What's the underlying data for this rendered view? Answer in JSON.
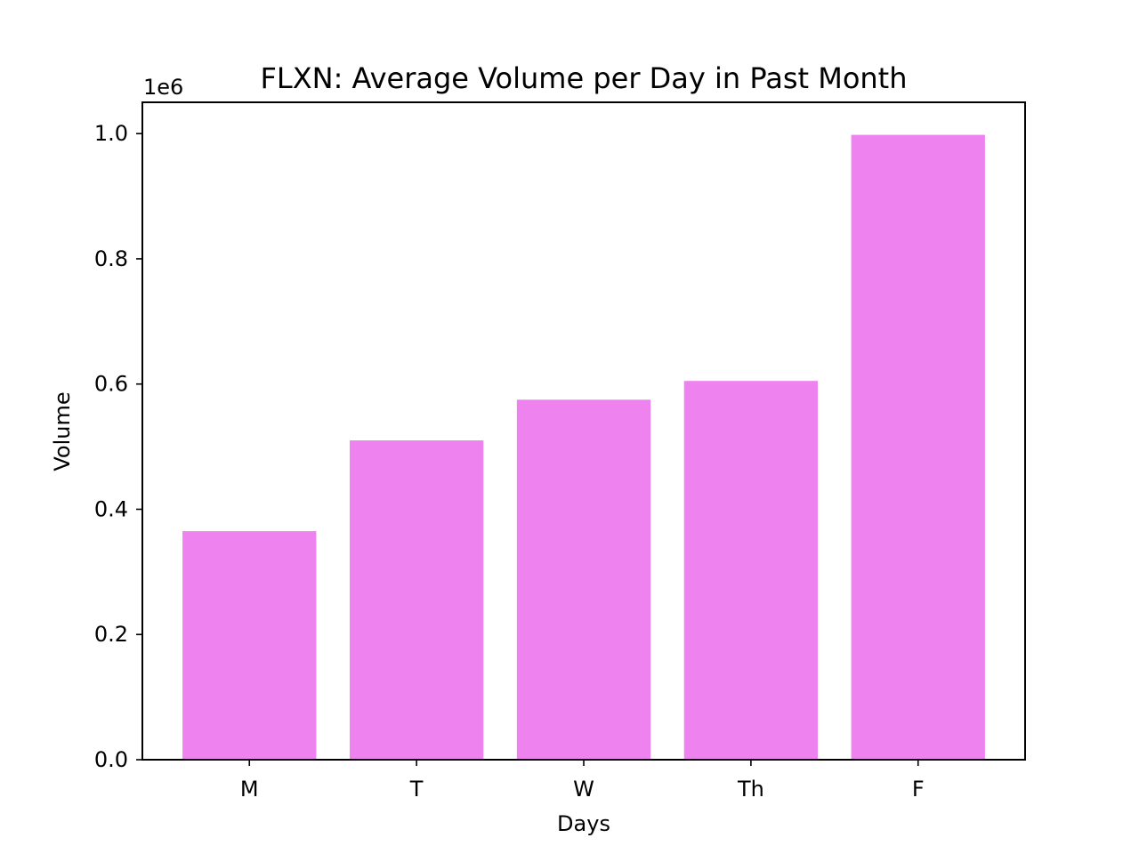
{
  "chart_data": {
    "type": "bar",
    "title": "FLXN: Average Volume per Day in Past Month",
    "xlabel": "Days",
    "ylabel": "Volume",
    "y_offset_label": "1e6",
    "categories": [
      "M",
      "T",
      "W",
      "Th",
      "F"
    ],
    "values": [
      365000,
      510000,
      575000,
      605000,
      998000
    ],
    "ylim": [
      0,
      1050000
    ],
    "yticks": [
      0,
      200000,
      400000,
      600000,
      800000,
      1000000
    ],
    "ytick_labels": [
      "0.0",
      "0.2",
      "0.4",
      "0.6",
      "0.8",
      "1.0"
    ],
    "bar_color": "#ee82ee",
    "grid": false,
    "legend": "none"
  }
}
